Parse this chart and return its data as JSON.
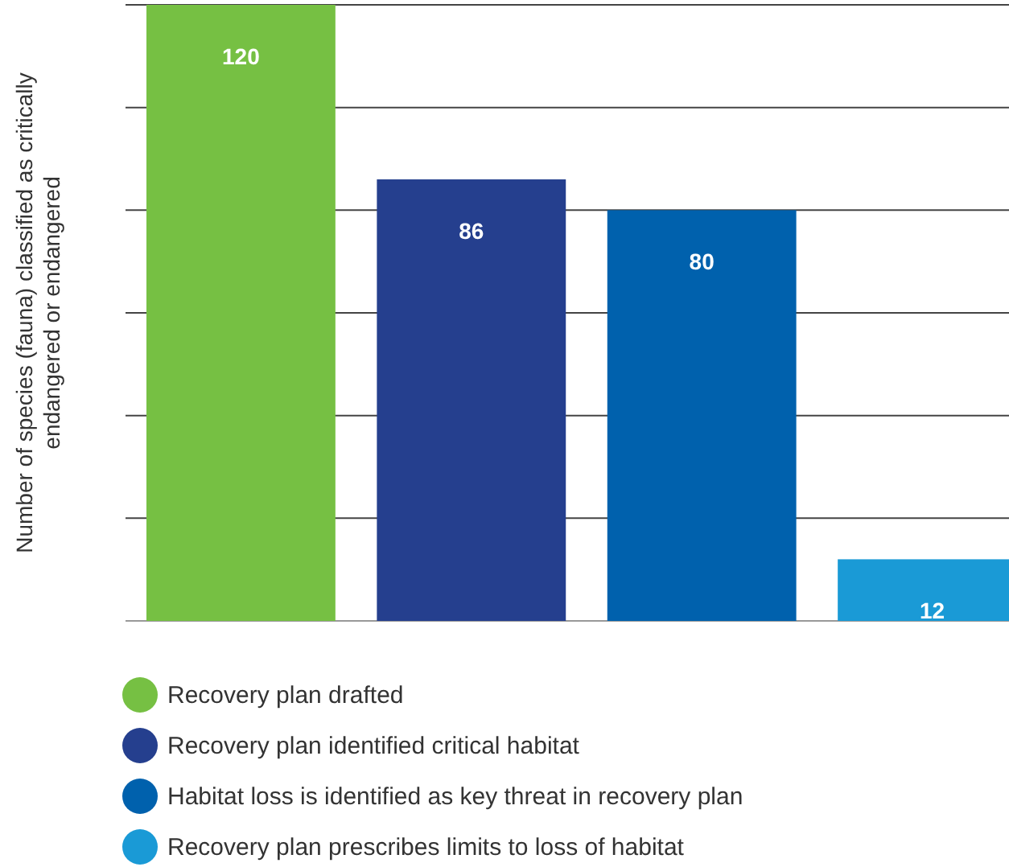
{
  "chart_data": {
    "type": "bar",
    "ylabel": "Number of species (fauna) classified as critically endangered or endangered",
    "categories": [
      null
    ],
    "series": [
      {
        "name": "Recovery plan drafted",
        "color": "#76c043",
        "values": [
          120
        ]
      },
      {
        "name": "Recovery plan identified critical habitat",
        "color": "#253f8e",
        "values": [
          86
        ]
      },
      {
        "name": "Habitat loss is identified as key threat in recovery plan",
        "color": "#0061ad",
        "values": [
          80
        ]
      },
      {
        "name": "Recovery plan prescribes limits to loss of habitat",
        "color": "#1a9ad6",
        "values": [
          12
        ]
      }
    ],
    "ylim": [
      0,
      120
    ],
    "yticks": [
      {
        "value": 0,
        "label": null
      },
      {
        "value": 20,
        "label": null
      },
      {
        "value": 40,
        "label": null
      },
      {
        "value": 60,
        "label": null
      },
      {
        "value": 80,
        "label": null
      },
      {
        "value": 100,
        "label": null
      },
      {
        "value": 120,
        "label": null
      }
    ],
    "grid": "y",
    "data_labels": true,
    "legend": "bottom"
  }
}
